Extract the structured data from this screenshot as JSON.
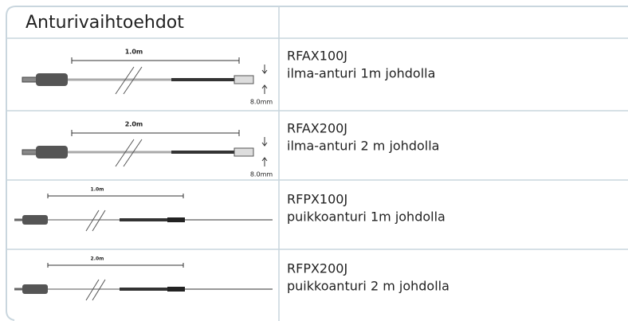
{
  "header": {
    "title": "Anturivaihtoehdot"
  },
  "rows": [
    {
      "dimensions": [
        "1.0m",
        "8.0mm"
      ],
      "code": "RFAX100J",
      "description": "ilma-anturi 1m johdolla"
    },
    {
      "dimensions": [
        "2.0m",
        "8.0mm"
      ],
      "code": "RFAX200J",
      "description": "ilma-anturi 2 m johdolla"
    },
    {
      "dimensions": [
        "1.0m"
      ],
      "code": "RFPX100J",
      "description": "puikkoanturi 1m johdolla"
    },
    {
      "dimensions": [
        "2.0m"
      ],
      "code": "RFPX200J",
      "description": "puikkoanturi 2 m johdolla"
    }
  ]
}
